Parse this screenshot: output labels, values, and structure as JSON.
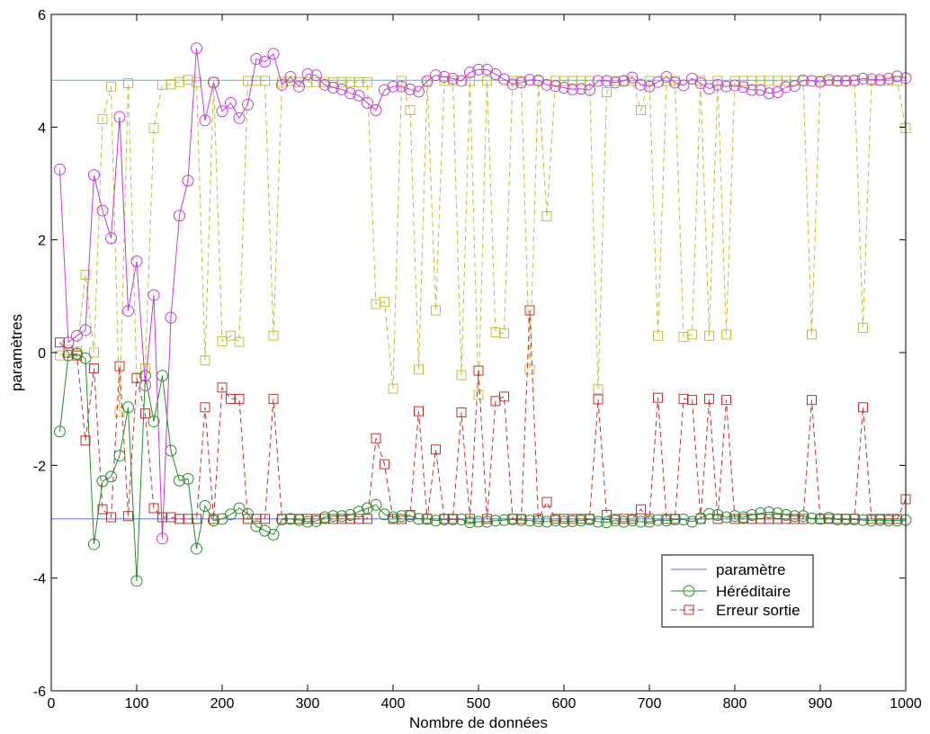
{
  "chart_data": {
    "type": "line",
    "xlabel": "Nombre de données",
    "ylabel": "paramètres",
    "xlim": [
      0,
      1000
    ],
    "ylim": [
      -6,
      6
    ],
    "xticks": [
      0,
      100,
      200,
      300,
      400,
      500,
      600,
      700,
      800,
      900,
      1000
    ],
    "yticks": [
      -6,
      -4,
      -2,
      0,
      2,
      4,
      6
    ],
    "grid": false,
    "legend_position": "bottom-right",
    "colors": {
      "param": "#6a6ad0",
      "param2": "#40c0d8",
      "hered1": "#c040d0",
      "hered2": "#2a8a2a",
      "err1": "#c0c040",
      "err2": "#c03030"
    },
    "legend": [
      {
        "label": "paramètre",
        "marker": "none",
        "dash": false,
        "color": "#6a6ad0"
      },
      {
        "label": "Héréditaire",
        "marker": "circle",
        "dash": false,
        "color": "#2a8a2a"
      },
      {
        "label": "Erreur sortie",
        "marker": "square",
        "dash": true,
        "color": "#c03030"
      }
    ],
    "series": [
      {
        "role": "param1",
        "color": "#40c0d8",
        "marker": "none",
        "dash": false,
        "x": [
          0,
          1000
        ],
        "y": [
          4.83,
          4.83
        ]
      },
      {
        "role": "param2",
        "color": "#6a6ad0",
        "marker": "none",
        "dash": false,
        "x": [
          0,
          1000
        ],
        "y": [
          -2.95,
          -2.95
        ]
      },
      {
        "role": "hered1",
        "color": "#c040d0",
        "marker": "circle",
        "dash": false,
        "x": [
          10,
          20,
          30,
          40,
          50,
          60,
          70,
          80,
          90,
          100,
          110,
          120,
          130,
          140,
          150,
          160,
          170,
          180,
          190,
          200,
          210,
          220,
          230,
          240,
          250,
          260,
          270,
          280,
          290,
          300,
          310,
          320,
          330,
          340,
          350,
          360,
          370,
          380,
          390,
          400,
          410,
          420,
          430,
          440,
          450,
          460,
          470,
          480,
          490,
          500,
          510,
          520,
          530,
          540,
          550,
          560,
          570,
          580,
          590,
          600,
          610,
          620,
          630,
          640,
          650,
          660,
          670,
          680,
          690,
          700,
          710,
          720,
          730,
          740,
          750,
          760,
          770,
          780,
          790,
          800,
          810,
          820,
          830,
          840,
          850,
          860,
          870,
          880,
          890,
          900,
          910,
          920,
          930,
          940,
          950,
          960,
          970,
          980,
          990,
          1000
        ],
        "y": [
          3.25,
          0.18,
          0.3,
          0.4,
          3.15,
          2.52,
          2.03,
          4.18,
          0.74,
          1.62,
          -0.58,
          1.02,
          -3.3,
          0.62,
          2.43,
          3.05,
          5.4,
          4.12,
          4.79,
          4.28,
          4.43,
          4.16,
          4.4,
          5.21,
          5.16,
          5.3,
          4.75,
          4.89,
          4.72,
          4.94,
          4.92,
          4.75,
          4.7,
          4.67,
          4.6,
          4.56,
          4.43,
          4.3,
          4.66,
          4.72,
          4.72,
          4.67,
          4.63,
          4.82,
          4.92,
          4.89,
          4.86,
          4.82,
          4.97,
          5.02,
          5.02,
          4.94,
          4.85,
          4.76,
          4.79,
          4.84,
          4.83,
          4.75,
          4.73,
          4.7,
          4.67,
          4.68,
          4.66,
          4.82,
          4.82,
          4.79,
          4.82,
          4.88,
          4.75,
          4.72,
          4.8,
          4.89,
          4.79,
          4.74,
          4.86,
          4.78,
          4.68,
          4.75,
          4.72,
          4.74,
          4.71,
          4.66,
          4.66,
          4.6,
          4.62,
          4.71,
          4.73,
          4.83,
          4.82,
          4.8,
          4.84,
          4.82,
          4.82,
          4.83,
          4.86,
          4.85,
          4.84,
          4.86,
          4.9,
          4.87
        ]
      },
      {
        "role": "hered2",
        "color": "#2a8a2a",
        "marker": "circle",
        "dash": false,
        "x": [
          10,
          20,
          30,
          40,
          50,
          60,
          70,
          80,
          90,
          100,
          110,
          120,
          130,
          140,
          150,
          160,
          170,
          180,
          190,
          200,
          210,
          220,
          230,
          240,
          250,
          260,
          270,
          280,
          290,
          300,
          310,
          320,
          330,
          340,
          350,
          360,
          370,
          380,
          390,
          400,
          410,
          420,
          430,
          440,
          450,
          460,
          470,
          480,
          490,
          500,
          510,
          520,
          530,
          540,
          550,
          560,
          570,
          580,
          590,
          600,
          610,
          620,
          630,
          640,
          650,
          660,
          670,
          680,
          690,
          700,
          710,
          720,
          730,
          740,
          750,
          760,
          770,
          780,
          790,
          800,
          810,
          820,
          830,
          840,
          850,
          860,
          870,
          880,
          890,
          900,
          910,
          920,
          930,
          940,
          950,
          960,
          970,
          980,
          990,
          1000
        ],
        "y": [
          -1.4,
          -0.05,
          -0.02,
          -0.1,
          -3.4,
          -2.28,
          -2.2,
          -1.83,
          -0.97,
          -4.05,
          -0.41,
          -1.22,
          -0.41,
          -1.74,
          -2.27,
          -2.24,
          -3.48,
          -2.72,
          -2.98,
          -2.95,
          -2.87,
          -2.76,
          -2.86,
          -3.08,
          -3.16,
          -3.23,
          -2.96,
          -2.95,
          -2.97,
          -3.0,
          -2.99,
          -2.92,
          -2.9,
          -2.9,
          -2.88,
          -2.82,
          -2.76,
          -2.7,
          -2.87,
          -2.92,
          -2.9,
          -2.9,
          -2.95,
          -2.95,
          -2.98,
          -2.96,
          -2.96,
          -2.96,
          -3.01,
          -3.0,
          -3.0,
          -2.98,
          -2.97,
          -2.96,
          -2.97,
          -2.98,
          -2.99,
          -3.0,
          -2.98,
          -3.0,
          -2.99,
          -2.98,
          -2.96,
          -3.0,
          -3.01,
          -2.98,
          -3.0,
          -2.98,
          -3.0,
          -3.0,
          -2.97,
          -2.98,
          -2.96,
          -2.96,
          -3.0,
          -2.94,
          -2.86,
          -2.88,
          -2.92,
          -2.9,
          -2.92,
          -2.88,
          -2.85,
          -2.83,
          -2.85,
          -2.88,
          -2.9,
          -2.9,
          -2.94,
          -2.95,
          -2.93,
          -2.96,
          -2.96,
          -2.96,
          -2.97,
          -2.98,
          -2.97,
          -2.98,
          -2.98,
          -2.97
        ]
      },
      {
        "role": "err1",
        "color": "#c0c040",
        "marker": "square",
        "dash": true,
        "x": [
          10,
          20,
          30,
          40,
          50,
          60,
          70,
          80,
          90,
          100,
          110,
          120,
          130,
          140,
          150,
          160,
          170,
          180,
          190,
          200,
          210,
          220,
          230,
          240,
          250,
          260,
          270,
          280,
          290,
          300,
          310,
          320,
          330,
          340,
          350,
          360,
          370,
          380,
          390,
          400,
          410,
          420,
          430,
          440,
          450,
          460,
          470,
          480,
          490,
          500,
          510,
          520,
          530,
          540,
          550,
          560,
          570,
          580,
          590,
          600,
          610,
          620,
          630,
          640,
          650,
          660,
          670,
          680,
          690,
          700,
          710,
          720,
          730,
          740,
          750,
          760,
          770,
          780,
          790,
          800,
          810,
          820,
          830,
          840,
          850,
          860,
          870,
          880,
          890,
          900,
          910,
          920,
          930,
          940,
          950,
          960,
          970,
          980,
          990,
          1000
        ],
        "y": [
          -0.05,
          0.05,
          0.02,
          1.38,
          0.0,
          4.14,
          4.72,
          -1.05,
          4.78,
          -0.45,
          -0.28,
          3.98,
          4.75,
          4.76,
          4.8,
          4.84,
          4.8,
          -0.14,
          4.8,
          0.2,
          0.3,
          0.19,
          4.82,
          4.82,
          4.82,
          0.3,
          4.8,
          4.82,
          4.8,
          4.8,
          4.8,
          4.8,
          4.8,
          4.8,
          4.8,
          4.8,
          4.8,
          0.86,
          0.9,
          -0.64,
          4.82,
          4.3,
          -0.3,
          4.8,
          0.75,
          4.82,
          4.82,
          -0.4,
          4.82,
          -0.75,
          4.82,
          0.36,
          0.34,
          4.82,
          4.82,
          -0.3,
          4.82,
          2.42,
          4.82,
          4.82,
          4.82,
          4.82,
          4.82,
          -0.65,
          4.62,
          4.82,
          4.82,
          4.82,
          4.3,
          4.82,
          0.3,
          4.82,
          4.82,
          0.28,
          0.32,
          4.82,
          0.3,
          4.82,
          0.32,
          4.82,
          4.82,
          4.82,
          4.82,
          4.82,
          4.82,
          4.82,
          4.82,
          4.82,
          0.32,
          4.82,
          4.82,
          4.82,
          4.82,
          4.82,
          0.44,
          4.82,
          4.82,
          4.82,
          4.82,
          3.98
        ]
      },
      {
        "role": "err2",
        "color": "#c03030",
        "marker": "square",
        "dash": true,
        "x": [
          10,
          20,
          30,
          40,
          50,
          60,
          70,
          80,
          90,
          100,
          110,
          120,
          130,
          140,
          150,
          160,
          170,
          180,
          190,
          200,
          210,
          220,
          230,
          240,
          250,
          260,
          270,
          280,
          290,
          300,
          310,
          320,
          330,
          340,
          350,
          360,
          370,
          380,
          390,
          400,
          410,
          420,
          430,
          440,
          450,
          460,
          470,
          480,
          490,
          500,
          510,
          520,
          530,
          540,
          550,
          560,
          570,
          580,
          590,
          600,
          610,
          620,
          630,
          640,
          650,
          660,
          670,
          680,
          690,
          700,
          710,
          720,
          730,
          740,
          750,
          760,
          770,
          780,
          790,
          800,
          810,
          820,
          830,
          840,
          850,
          860,
          870,
          880,
          890,
          900,
          910,
          920,
          930,
          940,
          950,
          960,
          970,
          980,
          990,
          1000
        ],
        "y": [
          0.18,
          0.0,
          -0.05,
          -1.56,
          -0.28,
          -2.78,
          -2.92,
          -0.24,
          -2.9,
          -0.45,
          -1.08,
          -2.76,
          -2.92,
          -2.92,
          -2.95,
          -2.95,
          -2.95,
          -0.97,
          -2.95,
          -0.62,
          -0.82,
          -0.82,
          -2.95,
          -2.95,
          -2.95,
          -0.82,
          -2.95,
          -2.95,
          -2.95,
          -2.95,
          -2.95,
          -2.95,
          -2.95,
          -2.95,
          -2.95,
          -2.95,
          -2.95,
          -1.52,
          -1.98,
          -2.95,
          -2.95,
          -2.88,
          -1.04,
          -2.95,
          -1.72,
          -2.95,
          -2.95,
          -1.06,
          -2.95,
          -0.32,
          -2.95,
          -0.86,
          -0.78,
          -2.95,
          -2.95,
          0.75,
          -2.95,
          -2.65,
          -2.95,
          -2.95,
          -2.95,
          -2.95,
          -2.95,
          -0.83,
          -2.88,
          -2.95,
          -2.95,
          -2.95,
          -2.78,
          -2.95,
          -0.8,
          -2.95,
          -2.95,
          -0.82,
          -0.84,
          -2.95,
          -0.82,
          -2.95,
          -0.84,
          -2.95,
          -2.95,
          -2.95,
          -2.95,
          -2.95,
          -2.95,
          -2.95,
          -2.95,
          -2.95,
          -0.84,
          -2.95,
          -2.95,
          -2.95,
          -2.95,
          -2.95,
          -0.97,
          -2.95,
          -2.95,
          -2.95,
          -2.95,
          -2.6
        ]
      }
    ]
  }
}
